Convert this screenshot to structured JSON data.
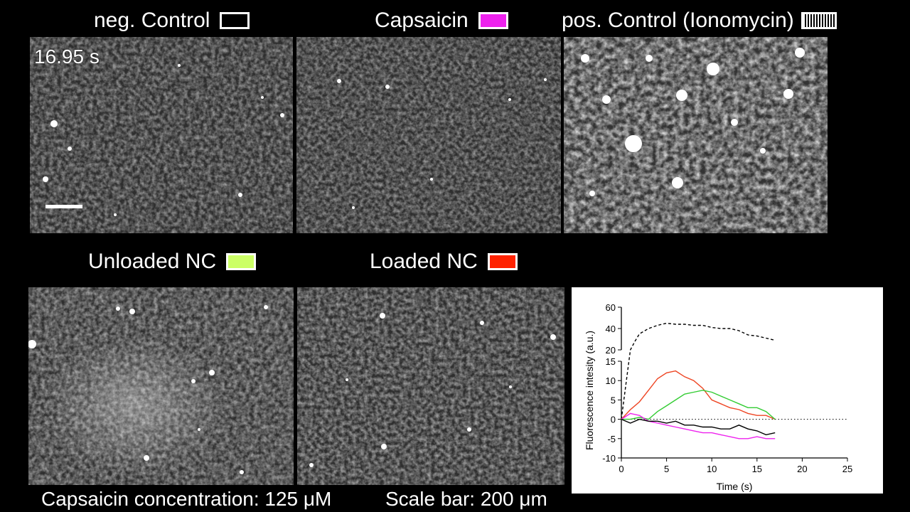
{
  "panels": {
    "neg_control": {
      "label": "neg. Control",
      "swatch_color": "#000000"
    },
    "capsaicin": {
      "label": "Capsaicin",
      "swatch_color": "#ee22ee"
    },
    "pos_control": {
      "label": "pos. Control (Ionomycin)",
      "swatch_color": "striped"
    },
    "unloaded_nc": {
      "label": "Unloaded NC",
      "swatch_color": "#ccff66"
    },
    "loaded_nc": {
      "label": "Loaded NC",
      "swatch_color": "#ff2200"
    }
  },
  "timestamp": "16.95 s",
  "footer": {
    "concentration": "Capsaicin concentration: 125 μM",
    "scale": "Scale bar: 200 μm"
  },
  "chart_data": {
    "type": "line",
    "xlabel": "Time (s)",
    "ylabel": "Fluorescence intesity (a.u.)",
    "x_ticks": [
      0,
      5,
      10,
      15,
      20,
      25
    ],
    "y_ticks_lower": [
      -10,
      -5,
      0,
      5,
      10,
      15
    ],
    "y_ticks_upper": [
      20,
      40,
      60
    ],
    "xlim": [
      0,
      25
    ],
    "ylim_lower": [
      -10,
      15
    ],
    "ylim_upper": [
      20,
      60
    ],
    "zero_line": "dotted",
    "series": [
      {
        "color": "#000000",
        "style": "dashed",
        "axis": "upper",
        "x": [
          0,
          0.5,
          1,
          1.5,
          2,
          3,
          4,
          5,
          6,
          7,
          8,
          9,
          10,
          11,
          12,
          13,
          14,
          15,
          16,
          17
        ],
        "y": [
          0,
          5,
          20,
          28,
          35,
          40,
          43,
          45,
          44,
          44,
          43,
          43,
          41,
          40,
          40,
          38,
          34,
          33,
          31,
          29
        ]
      },
      {
        "color": "#ee4422",
        "style": "solid",
        "axis": "lower",
        "x": [
          0,
          1,
          2,
          3,
          4,
          5,
          6,
          7,
          8,
          9,
          10,
          11,
          12,
          13,
          14,
          15,
          16,
          17
        ],
        "y": [
          0,
          2.5,
          4.5,
          7.5,
          10.5,
          12,
          12.5,
          11,
          10,
          8,
          5,
          4,
          3,
          2.5,
          1.5,
          1,
          1,
          0
        ]
      },
      {
        "color": "#33cc33",
        "style": "solid",
        "axis": "lower",
        "x": [
          0,
          1,
          2,
          3,
          4,
          5,
          6,
          7,
          8,
          9,
          10,
          11,
          12,
          13,
          14,
          15,
          16,
          17
        ],
        "y": [
          0,
          0,
          0.5,
          0,
          2,
          3.5,
          5,
          6.5,
          7,
          7.5,
          7,
          6,
          5,
          4,
          3,
          3,
          2,
          0
        ]
      },
      {
        "color": "#ee22ee",
        "style": "solid",
        "axis": "lower",
        "x": [
          0,
          1,
          2,
          3,
          4,
          5,
          6,
          7,
          8,
          9,
          10,
          11,
          12,
          13,
          14,
          15,
          16,
          17
        ],
        "y": [
          0,
          1.5,
          1,
          -0.5,
          -1,
          -1.5,
          -2,
          -2.5,
          -3,
          -3.5,
          -3.5,
          -4,
          -4.5,
          -5,
          -5,
          -4.5,
          -5,
          -5
        ]
      },
      {
        "color": "#000000",
        "style": "solid",
        "axis": "lower",
        "x": [
          0,
          1,
          2,
          3,
          4,
          5,
          6,
          7,
          8,
          9,
          10,
          11,
          12,
          13,
          14,
          15,
          16,
          17
        ],
        "y": [
          0,
          -1,
          0,
          -0.5,
          -0.5,
          -1,
          -0.5,
          -1.5,
          -1.5,
          -2,
          -2,
          -2.5,
          -2.5,
          -1.5,
          -2.5,
          -3,
          -4,
          -3.5
        ]
      }
    ]
  }
}
